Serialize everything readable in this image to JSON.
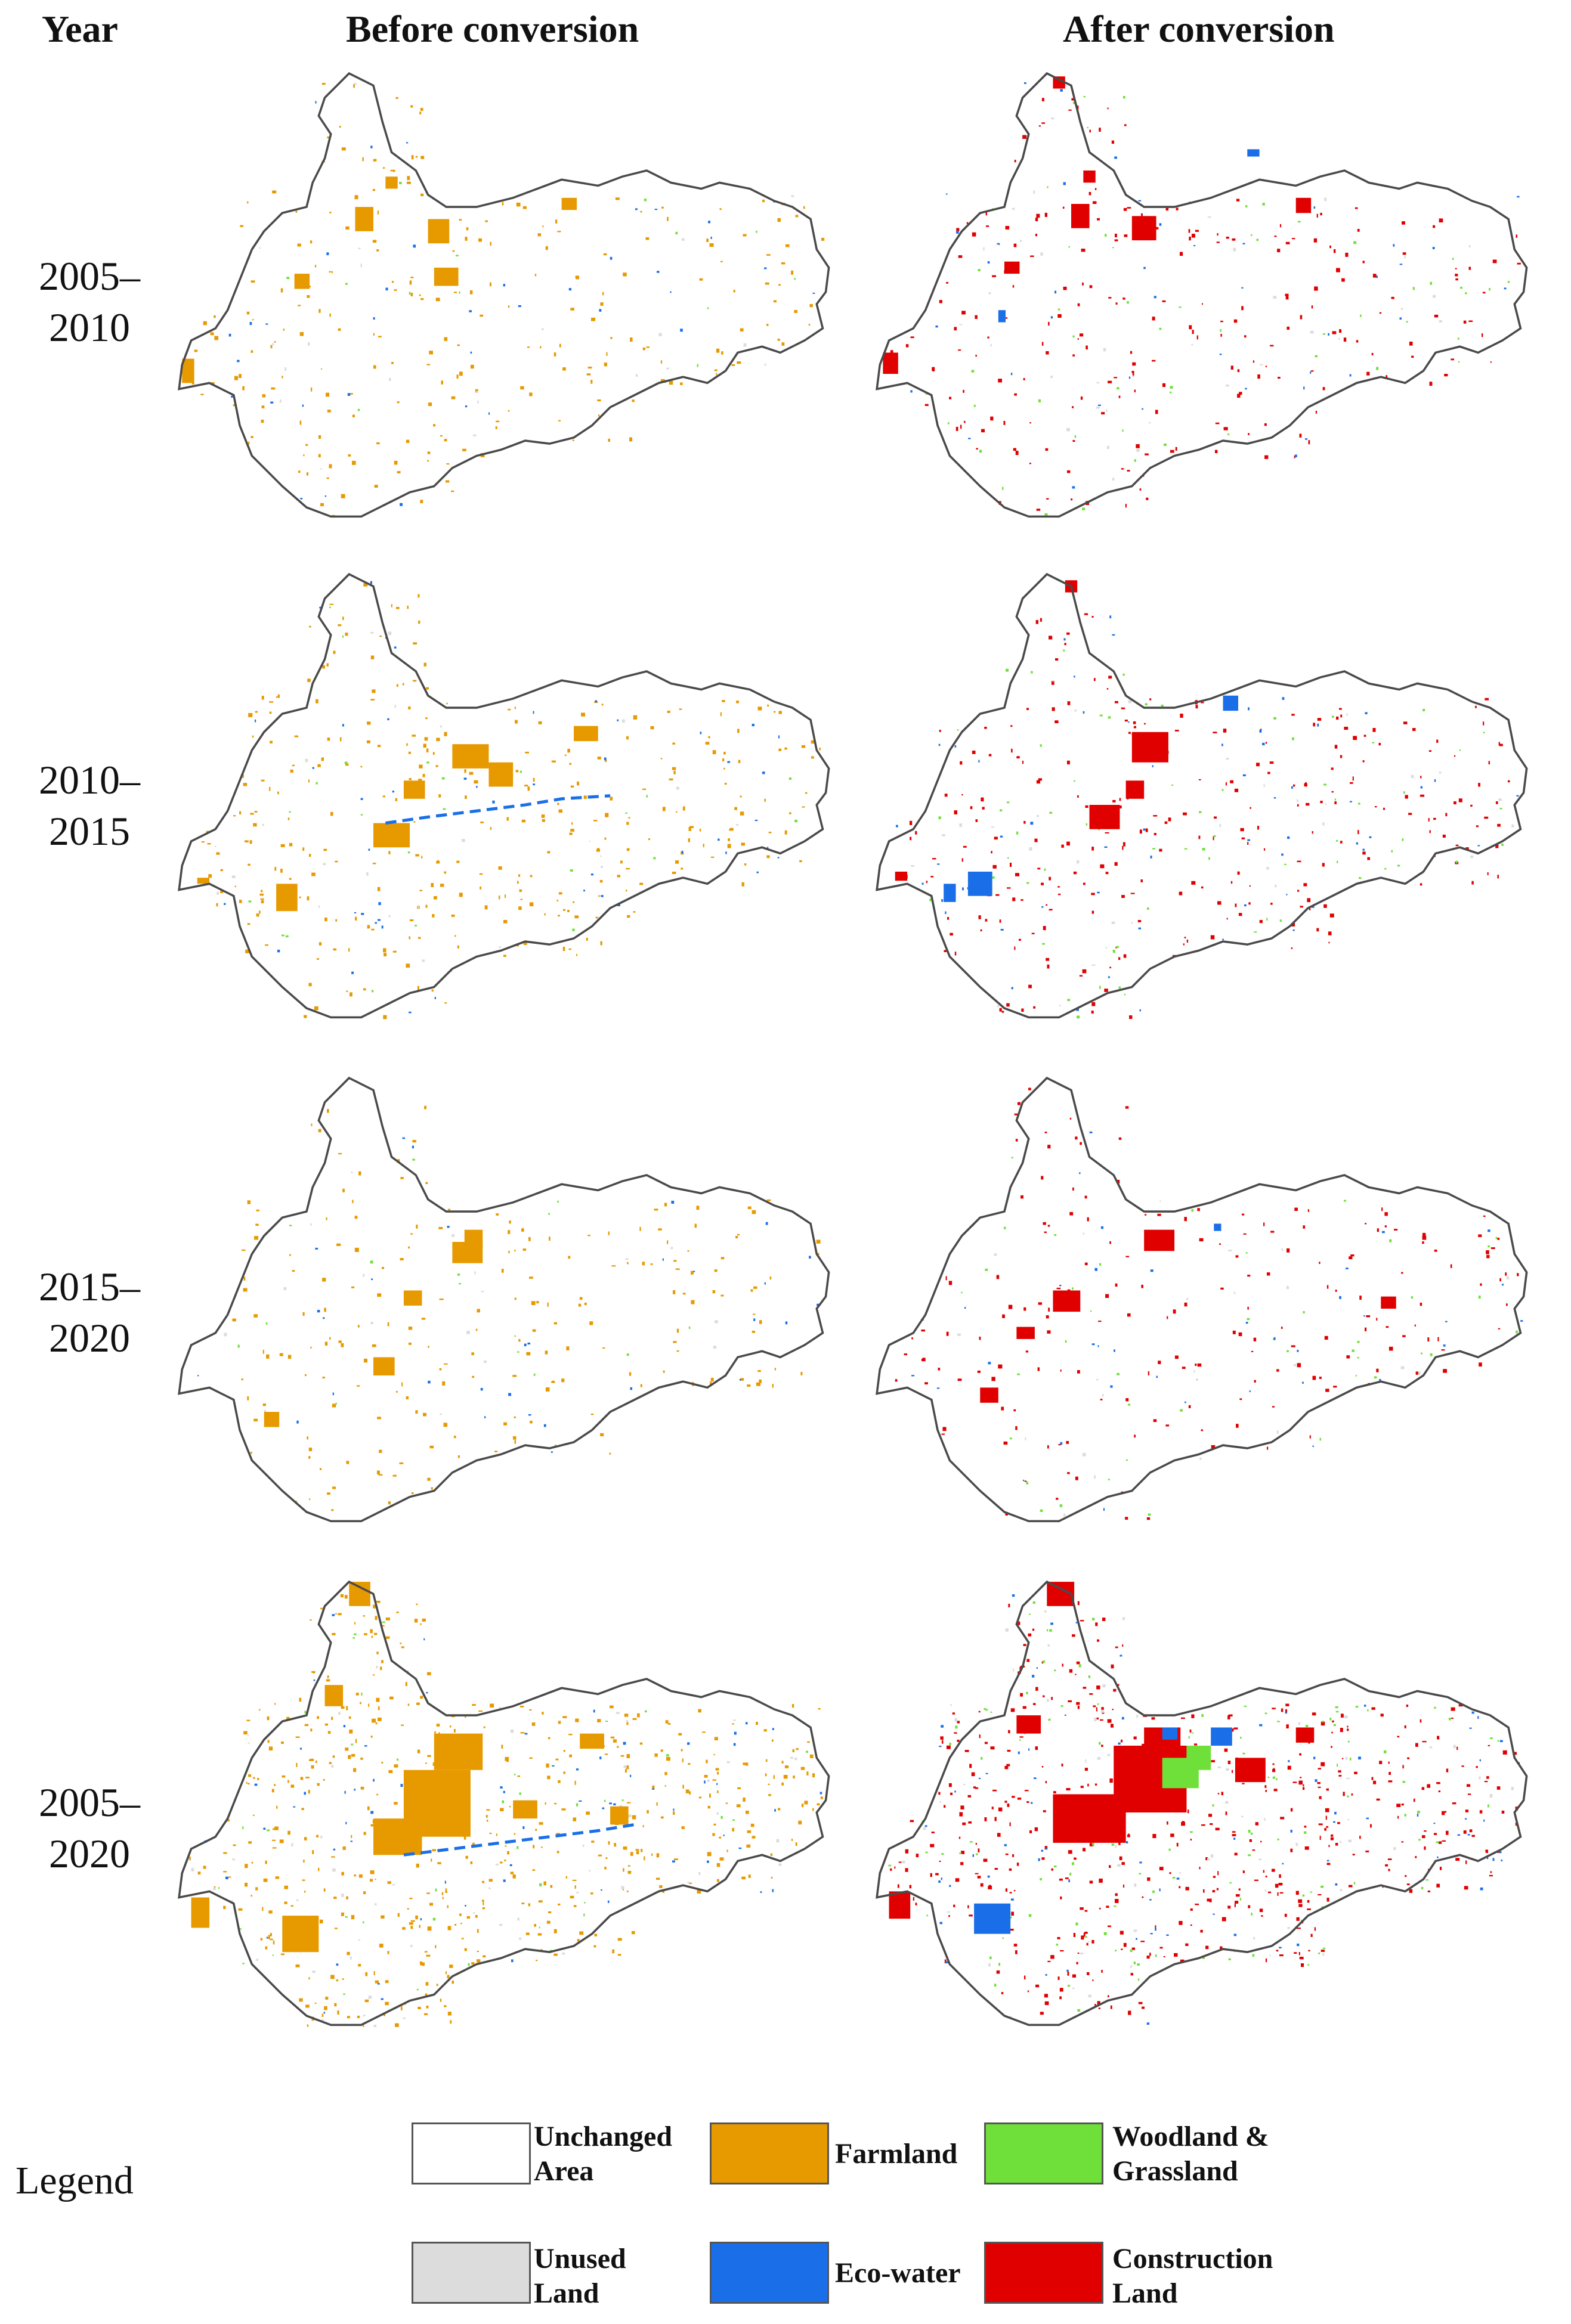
{
  "headers": {
    "year": "Year",
    "before": "Before conversion",
    "after": "After conversion"
  },
  "periods": [
    {
      "line1": "2005–",
      "line2": "2010"
    },
    {
      "line1": "2010–",
      "line2": "2015"
    },
    {
      "line1": "2015–",
      "line2": "2020"
    },
    {
      "line1": "2005–",
      "line2": "2020"
    }
  ],
  "legend": {
    "label": "Legend",
    "items": [
      {
        "line1": "Unchanged",
        "line2": "Area",
        "color": "#ffffff"
      },
      {
        "line1": "Farmland",
        "line2": "",
        "color": "#e69a00"
      },
      {
        "line1": "Woodland &",
        "line2": "Grassland",
        "color": "#6fe03a"
      },
      {
        "line1": "Unused",
        "line2": "Land",
        "color": "#dcdcdc"
      },
      {
        "line1": "Eco-water",
        "line2": "",
        "color": "#1a6fe8"
      },
      {
        "line1": "Construction",
        "line2": "Land",
        "color": "#e00000"
      }
    ]
  },
  "colors": {
    "boundary": "#4a4a4a",
    "farmland": "#e69a00",
    "woodland_grassland": "#6fe03a",
    "unused": "#dcdcdc",
    "eco_water": "#1a6fe8",
    "construction": "#e00000"
  }
}
